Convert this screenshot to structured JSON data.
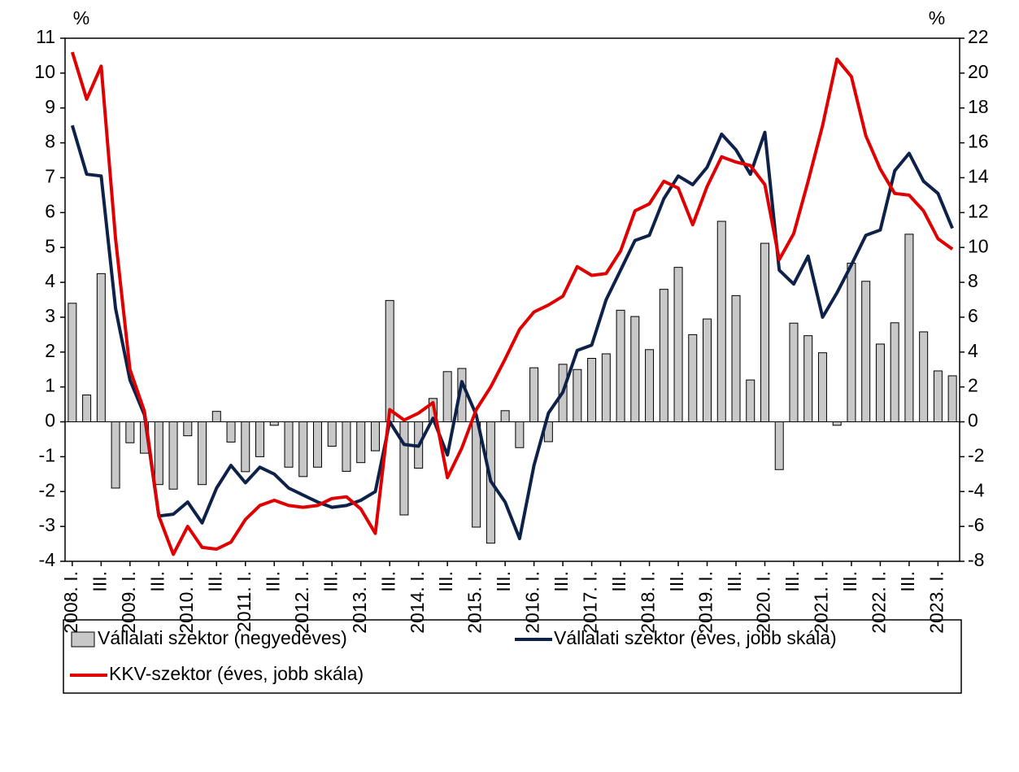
{
  "chart_data": {
    "type": "bar-line",
    "y_unit_left": "%",
    "y_unit_right": "%",
    "categories": [
      "2008. I.",
      null,
      "III.",
      null,
      "2009. I.",
      null,
      "III.",
      null,
      "2010. I.",
      null,
      "III.",
      null,
      "2011. I.",
      null,
      "III.",
      null,
      "2012. I.",
      null,
      "III.",
      null,
      "2013. I.",
      null,
      "III.",
      null,
      "2014. I.",
      null,
      "III.",
      null,
      "2015. I.",
      null,
      "III.",
      null,
      "2016. I.",
      null,
      "III.",
      null,
      "2017. I.",
      null,
      "III.",
      null,
      "2018. I.",
      null,
      "III.",
      null,
      "2019. I.",
      null,
      "III.",
      null,
      "2020. I.",
      null,
      "III.",
      null,
      "2021. I.",
      null,
      "III.",
      null,
      "2022. I.",
      null,
      "III.",
      null,
      "2023. I.",
      null
    ],
    "series": [
      {
        "name": "Vállalati szektor (negyedéves)",
        "kind": "bar",
        "color": "#c8c8c8",
        "values": [
          3.4,
          0.77,
          4.25,
          -1.9,
          -0.6,
          -0.9,
          -1.8,
          -1.93,
          -0.4,
          -1.8,
          0.3,
          -0.58,
          -1.43,
          -1.0,
          -0.1,
          -1.3,
          -1.57,
          -1.3,
          -0.7,
          -1.42,
          -1.17,
          -0.83,
          3.48,
          -2.67,
          -1.33,
          0.67,
          1.44,
          1.53,
          -3.02,
          -3.48,
          0.32,
          -0.74,
          1.55,
          -0.57,
          1.65,
          1.5,
          1.82,
          1.95,
          3.2,
          3.02,
          2.07,
          3.8,
          4.43,
          2.5,
          2.95,
          5.75,
          3.62,
          1.2,
          5.12,
          -1.37,
          2.83,
          2.47,
          1.98,
          -0.1,
          4.55,
          4.03,
          2.23,
          2.84,
          5.38,
          2.58,
          1.46,
          1.32
        ]
      },
      {
        "name": "Vállalati szektor (éves, jobb skála)",
        "kind": "line",
        "axis": "y2",
        "color": "#0d2149",
        "values": [
          17.0,
          14.2,
          14.1,
          6.5,
          2.4,
          0.4,
          -5.4,
          -5.3,
          -4.6,
          -5.8,
          -3.8,
          -2.5,
          -3.5,
          -2.6,
          -3.0,
          -3.8,
          -4.2,
          -4.6,
          -4.9,
          -4.8,
          -4.5,
          -4.0,
          0.0,
          -1.3,
          -1.4,
          0.2,
          -1.9,
          2.3,
          0.4,
          -3.4,
          -4.6,
          -6.7,
          -2.5,
          0.5,
          1.7,
          4.1,
          4.4,
          7.0,
          8.7,
          10.4,
          10.7,
          12.8,
          14.1,
          13.6,
          14.6,
          16.5,
          15.6,
          14.2,
          16.6,
          8.7,
          7.9,
          9.5,
          6.0,
          7.4,
          9.0,
          10.7,
          11.0,
          14.4,
          15.4,
          13.8,
          13.1,
          11.1
        ]
      },
      {
        "name": "KKV-szektor (éves, jobb skála)",
        "kind": "line",
        "axis": "y2",
        "color": "#e00000",
        "values": [
          21.2,
          18.5,
          20.4,
          10.5,
          3.0,
          0.6,
          -5.4,
          -7.6,
          -6.0,
          -7.2,
          -7.3,
          -6.9,
          -5.6,
          -4.8,
          -4.5,
          -4.8,
          -4.9,
          -4.8,
          -4.4,
          -4.3,
          -5.0,
          -6.4,
          0.7,
          0.1,
          0.5,
          1.1,
          -3.2,
          -1.5,
          0.7,
          2.0,
          3.6,
          5.3,
          6.3,
          6.7,
          7.2,
          8.9,
          8.4,
          8.5,
          9.8,
          12.1,
          12.5,
          13.8,
          13.4,
          11.3,
          13.5,
          15.2,
          14.9,
          14.7,
          13.6,
          9.3,
          10.8,
          13.8,
          17.0,
          20.8,
          19.8,
          16.4,
          14.5,
          13.1,
          13.0,
          12.1,
          10.5,
          9.9
        ]
      }
    ],
    "ylim": [
      -4,
      11
    ],
    "yticks": [
      -4,
      -3,
      -2,
      -1,
      0,
      1,
      2,
      3,
      4,
      5,
      6,
      7,
      8,
      9,
      10,
      11
    ],
    "y2lim": [
      -8,
      22
    ],
    "y2ticks": [
      -8,
      -6,
      -4,
      -2,
      0,
      2,
      4,
      6,
      8,
      10,
      12,
      14,
      16,
      18,
      20,
      22
    ],
    "legend": "bottom"
  }
}
